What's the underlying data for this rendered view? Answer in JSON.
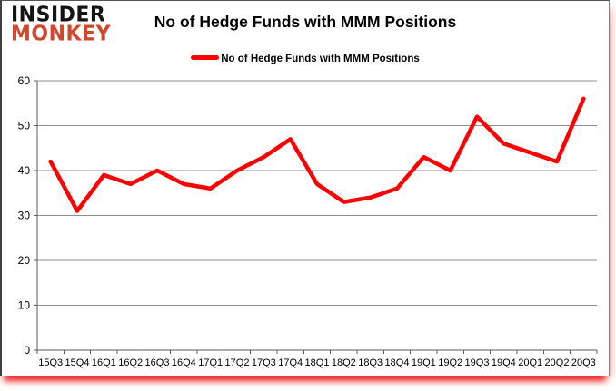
{
  "logo": {
    "line1": "INSIDER",
    "line2": "MONKEY",
    "line1_color": "#141414",
    "line2_color": "#d0472d"
  },
  "header": {
    "title": "No of Hedge Funds with MMM Positions"
  },
  "legend": {
    "label": "No of Hedge Funds with MMM Positions",
    "marker_color": "#ff0000"
  },
  "chart_data": {
    "type": "line",
    "title": "No of Hedge Funds with MMM Positions",
    "series": [
      {
        "name": "No of Hedge Funds with MMM Positions",
        "values": [
          42,
          31,
          39,
          37,
          40,
          37,
          36,
          40,
          43,
          47,
          37,
          33,
          34,
          36,
          43,
          40,
          52,
          46,
          44,
          42,
          56
        ]
      }
    ],
    "categories": [
      "15Q3",
      "15Q4",
      "16Q1",
      "16Q2",
      "16Q3",
      "16Q4",
      "17Q1",
      "17Q2",
      "17Q3",
      "17Q4",
      "18Q1",
      "18Q2",
      "18Q3",
      "18Q4",
      "19Q1",
      "19Q2",
      "19Q3",
      "19Q4",
      "20Q1",
      "20Q2",
      "20Q3"
    ],
    "xlabel": "",
    "ylabel": "",
    "ylim": [
      0,
      60
    ],
    "yticks": [
      0,
      10,
      20,
      30,
      40,
      50,
      60
    ],
    "grid": true,
    "legend_position": "top",
    "line_color": "#ff0000",
    "grid_color": "#8e8e8e",
    "axis_color": "#595959"
  }
}
